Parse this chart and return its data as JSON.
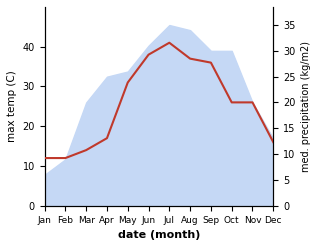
{
  "months": [
    "Jan",
    "Feb",
    "Mar",
    "Apr",
    "May",
    "Jun",
    "Jul",
    "Aug",
    "Sep",
    "Oct",
    "Nov",
    "Dec"
  ],
  "month_indices": [
    1,
    2,
    3,
    4,
    5,
    6,
    7,
    8,
    9,
    10,
    11,
    12
  ],
  "temp": [
    12,
    12,
    14,
    17,
    31,
    38,
    41,
    37,
    36,
    26,
    26,
    16
  ],
  "precip": [
    6,
    9,
    20,
    25,
    26,
    31,
    35,
    34,
    30,
    30,
    20,
    13
  ],
  "temp_color": "#c0392b",
  "precip_fill_color": "#c5d8f5",
  "temp_ylim": [
    0,
    50
  ],
  "precip_ylim": [
    0,
    38.5
  ],
  "temp_yticks": [
    0,
    10,
    20,
    30,
    40
  ],
  "precip_yticks": [
    0,
    5,
    10,
    15,
    20,
    25,
    30,
    35
  ],
  "xlabel": "date (month)",
  "ylabel_left": "max temp (C)",
  "ylabel_right": "med. precipitation (kg/m2)"
}
